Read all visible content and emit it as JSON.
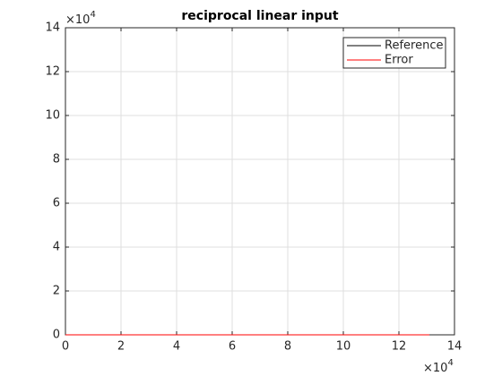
{
  "chart_data": {
    "type": "line",
    "title": "reciprocal linear input",
    "x": [
      0,
      131000
    ],
    "series": [
      {
        "name": "Reference",
        "color": "#000000",
        "values": [
          0,
          0
        ]
      },
      {
        "name": "Error",
        "color": "#ff0000",
        "values": [
          0,
          0
        ]
      }
    ],
    "xlim": [
      0,
      140000
    ],
    "ylim": [
      0,
      140000
    ],
    "xticks": [
      0,
      {
        "value": 20000,
        "label": "2"
      },
      {
        "value": 40000,
        "label": "4"
      },
      {
        "value": 60000,
        "label": "6"
      },
      {
        "value": 80000,
        "label": "8"
      },
      {
        "value": 100000,
        "label": "10"
      },
      {
        "value": 120000,
        "label": "12"
      },
      {
        "value": 140000,
        "label": "14"
      }
    ],
    "yticks": [
      0,
      {
        "value": 20000,
        "label": "2"
      },
      {
        "value": 40000,
        "label": "4"
      },
      {
        "value": 60000,
        "label": "6"
      },
      {
        "value": 80000,
        "label": "8"
      },
      {
        "value": 100000,
        "label": "10"
      },
      {
        "value": 120000,
        "label": "12"
      },
      {
        "value": 140000,
        "label": "14"
      }
    ],
    "x_exponent": {
      "base": "×10",
      "power": "4"
    },
    "y_exponent": {
      "base": "×10",
      "power": "4"
    },
    "grid": true,
    "legend": "northeast"
  }
}
